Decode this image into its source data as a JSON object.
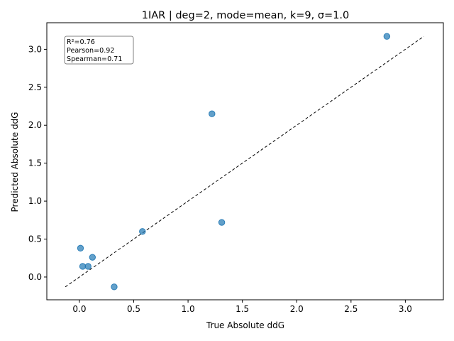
{
  "chart_data": {
    "type": "scatter",
    "title": "1IAR | deg=2, mode=mean, k=9, σ=1.0",
    "xlabel": "True Absolute ddG",
    "ylabel": "Predicted Absolute ddG",
    "xlim": [
      -0.3,
      3.35
    ],
    "ylim": [
      -0.3,
      3.35
    ],
    "xticks": [
      0.0,
      0.5,
      1.0,
      1.5,
      2.0,
      2.5,
      3.0
    ],
    "yticks": [
      0.0,
      0.5,
      1.0,
      1.5,
      2.0,
      2.5,
      3.0
    ],
    "xtick_labels": [
      "0.0",
      "0.5",
      "1.0",
      "1.5",
      "2.0",
      "2.5",
      "3.0"
    ],
    "ytick_labels": [
      "0.0",
      "0.5",
      "1.0",
      "1.5",
      "2.0",
      "2.5",
      "3.0"
    ],
    "grid": false,
    "points": [
      {
        "x": 2.83,
        "y": 3.17
      },
      {
        "x": 1.22,
        "y": 2.15
      },
      {
        "x": 1.31,
        "y": 0.72
      },
      {
        "x": 0.58,
        "y": 0.6
      },
      {
        "x": 0.01,
        "y": 0.38
      },
      {
        "x": 0.12,
        "y": 0.26
      },
      {
        "x": 0.03,
        "y": 0.14
      },
      {
        "x": 0.08,
        "y": 0.14
      },
      {
        "x": 0.32,
        "y": -0.13
      }
    ],
    "diagonal": {
      "from": -0.13,
      "to": 3.17,
      "style": "dashed"
    },
    "stats_box": {
      "lines": [
        "R²=0.76",
        "Pearson=0.92",
        "Spearman=0.71"
      ],
      "placement": "top-left"
    },
    "point_color": "#1f77b4"
  }
}
